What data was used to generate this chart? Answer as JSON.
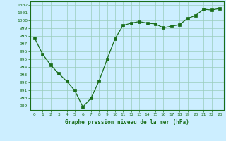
{
  "x": [
    0,
    1,
    2,
    3,
    4,
    5,
    6,
    7,
    8,
    9,
    10,
    11,
    12,
    13,
    14,
    15,
    16,
    17,
    18,
    19,
    20,
    21,
    22,
    23
  ],
  "y": [
    997.8,
    995.7,
    994.3,
    993.2,
    992.2,
    991.0,
    988.9,
    990.0,
    992.2,
    995.0,
    997.7,
    999.4,
    999.7,
    999.9,
    999.7,
    999.6,
    999.1,
    999.3,
    999.5,
    1000.3,
    1000.7,
    1001.5,
    1001.4,
    1001.6
  ],
  "line_color": "#1a6e1a",
  "marker_color": "#1a6e1a",
  "bg_color": "#cceeff",
  "grid_color": "#99ccbb",
  "xlabel": "Graphe pression niveau de la mer (hPa)",
  "ylim": [
    988.5,
    1002.5
  ],
  "xlim": [
    -0.5,
    23.5
  ],
  "yticks": [
    989,
    990,
    991,
    992,
    993,
    994,
    995,
    996,
    997,
    998,
    999,
    1000,
    1001,
    1002
  ],
  "xticks": [
    0,
    1,
    2,
    3,
    4,
    5,
    6,
    7,
    8,
    9,
    10,
    11,
    12,
    13,
    14,
    15,
    16,
    17,
    18,
    19,
    20,
    21,
    22,
    23
  ]
}
